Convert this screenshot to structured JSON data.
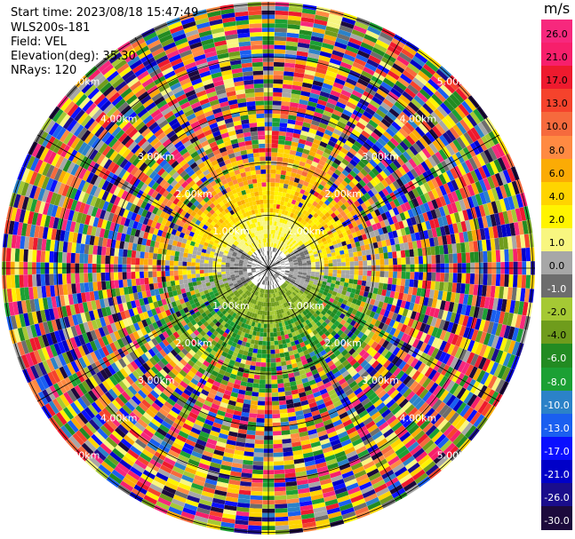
{
  "info": {
    "start_time": "Start time: 2023/08/18 15:47:49",
    "site": "WLS200s-181",
    "field": "Field: VEL",
    "elevation": "Elevation(deg): 35.30",
    "nrays": "NRays: 120"
  },
  "colorbar": {
    "unit": "m/s",
    "ticks": [
      "26.0",
      "21.0",
      "17.0",
      "13.0",
      "10.0",
      "8.0",
      "6.0",
      "4.0",
      "2.0",
      "1.0",
      "0.0",
      "-1.0",
      "-2.0",
      "-4.0",
      "-6.0",
      "-8.0",
      "-10.0",
      "-13.0",
      "-17.0",
      "-21.0",
      "-26.0",
      "-30.0"
    ],
    "bands": [
      "#f7287d",
      "#f71f6b",
      "#ee1a2e",
      "#f5432c",
      "#f66a3d",
      "#ff8a42",
      "#fbab05",
      "#ffd400",
      "#fff400",
      "#f8f680",
      "#a7a7a7",
      "#6d6d6d",
      "#a5c934",
      "#6f9c1c",
      "#228b22",
      "#1ca034",
      "#2b82c8",
      "#1a5ff0",
      "#0a0fff",
      "#0000c8",
      "#1a0d8c",
      "#1c0a3c"
    ],
    "tick_colors": [
      "#000000",
      "#000000",
      "#000000",
      "#000000",
      "#000000",
      "#000000",
      "#000000",
      "#000000",
      "#000000",
      "#000000",
      "#000000",
      "#ffffff",
      "#000000",
      "#000000",
      "#ffffff",
      "#ffffff",
      "#ffffff",
      "#ffffff",
      "#ffffff",
      "#ffffff",
      "#ffffff",
      "#ffffff"
    ]
  },
  "rings": {
    "labels": [
      "1.00km",
      "2.00km",
      "3.00km",
      "4.00km",
      "5.00km"
    ]
  },
  "chart_data": {
    "type": "heatmap",
    "projection": "polar PPI",
    "field": "VEL",
    "unit": "m/s",
    "n_rays": 120,
    "range_rings_km": [
      1,
      2,
      3,
      4,
      5
    ],
    "azimuth_lines_deg": [
      0,
      30,
      60,
      90,
      120,
      150,
      180,
      210,
      240,
      270,
      300,
      330
    ],
    "color_scale": [
      26,
      21,
      17,
      13,
      10,
      8,
      6,
      4,
      2,
      1,
      0,
      -1,
      -2,
      -4,
      -6,
      -8,
      -10,
      -13,
      -17,
      -21,
      -26,
      -30
    ],
    "near_field_pattern": {
      "north_sector": "positive velocities (yellow to orange, about 1 to 6 m/s)",
      "south_sector": "negative velocities (green, about -2 to -6 m/s)",
      "center": "near zero (gray)",
      "beyond_about_2km": "noisy full-range values"
    }
  }
}
